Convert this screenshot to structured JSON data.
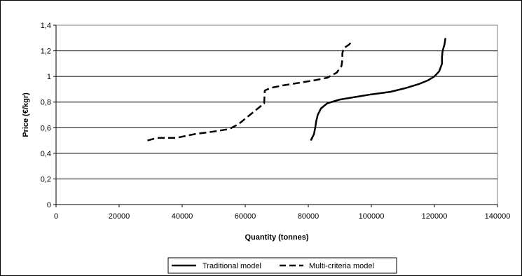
{
  "chart_data": {
    "type": "line",
    "xlabel": "Quantity (tonnes)",
    "ylabel": "Price (€/kgr)",
    "xlim": [
      0,
      140000
    ],
    "ylim": [
      0,
      1.4
    ],
    "x_ticks": [
      0,
      20000,
      40000,
      60000,
      80000,
      100000,
      120000,
      140000
    ],
    "x_tick_labels": [
      "0",
      "20000",
      "40000",
      "60000",
      "80000",
      "100000",
      "120000",
      "140000"
    ],
    "y_ticks": [
      0,
      0.2,
      0.4,
      0.6,
      0.8,
      1.0,
      1.2,
      1.4
    ],
    "y_tick_labels": [
      "0",
      "0,2",
      "0,4",
      "0,6",
      "0,8",
      "1",
      "1,2",
      "1,4"
    ],
    "grid": "horizontal",
    "legend_position": "bottom",
    "series": [
      {
        "name": "Traditional model",
        "style": "solid",
        "color": "#000000",
        "points": [
          [
            80800,
            0.5
          ],
          [
            81800,
            0.55
          ],
          [
            82200,
            0.6
          ],
          [
            82500,
            0.65
          ],
          [
            83000,
            0.7
          ],
          [
            84000,
            0.75
          ],
          [
            86000,
            0.79
          ],
          [
            90000,
            0.82
          ],
          [
            95000,
            0.84
          ],
          [
            100000,
            0.86
          ],
          [
            106000,
            0.88
          ],
          [
            111000,
            0.91
          ],
          [
            115000,
            0.94
          ],
          [
            118000,
            0.97
          ],
          [
            120000,
            1.0
          ],
          [
            121500,
            1.04
          ],
          [
            122400,
            1.1
          ],
          [
            122400,
            1.15
          ],
          [
            122600,
            1.2
          ],
          [
            123200,
            1.25
          ],
          [
            123500,
            1.3
          ]
        ]
      },
      {
        "name": "Multi-criteria model",
        "style": "dashed",
        "color": "#000000",
        "points": [
          [
            29000,
            0.5
          ],
          [
            32000,
            0.52
          ],
          [
            38000,
            0.52
          ],
          [
            44000,
            0.55
          ],
          [
            50000,
            0.57
          ],
          [
            55000,
            0.59
          ],
          [
            58000,
            0.63
          ],
          [
            61000,
            0.69
          ],
          [
            64500,
            0.76
          ],
          [
            66000,
            0.79
          ],
          [
            66200,
            0.89
          ],
          [
            68000,
            0.91
          ],
          [
            72000,
            0.93
          ],
          [
            77000,
            0.95
          ],
          [
            82000,
            0.97
          ],
          [
            86000,
            0.99
          ],
          [
            89000,
            1.03
          ],
          [
            90500,
            1.08
          ],
          [
            90800,
            1.13
          ],
          [
            90800,
            1.18
          ],
          [
            91200,
            1.22
          ],
          [
            93000,
            1.25
          ],
          [
            94000,
            1.28
          ]
        ]
      }
    ]
  }
}
